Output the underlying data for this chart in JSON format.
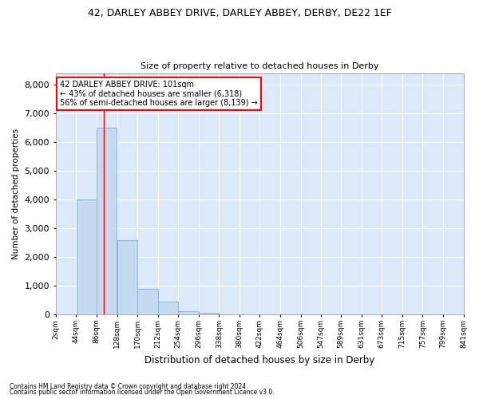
{
  "title1": "42, DARLEY ABBEY DRIVE, DARLEY ABBEY, DERBY, DE22 1EF",
  "title2": "Size of property relative to detached houses in Derby",
  "xlabel": "Distribution of detached houses by size in Derby",
  "ylabel": "Number of detached properties",
  "bar_color": "#c5d9f1",
  "bar_edge_color": "#8ab4d8",
  "background_color": "#dce9f8",
  "grid_color": "#ffffff",
  "property_size": 101,
  "annotation_line1": "42 DARLEY ABBEY DRIVE: 101sqm",
  "annotation_line2": "← 43% of detached houses are smaller (6,318)",
  "annotation_line3": "56% of semi-detached houses are larger (8,139) →",
  "footer1": "Contains HM Land Registry data © Crown copyright and database right 2024.",
  "footer2": "Contains public sector information licensed under the Open Government Licence v3.0.",
  "bin_labels": [
    "2sqm",
    "44sqm",
    "86sqm",
    "128sqm",
    "170sqm",
    "212sqm",
    "254sqm",
    "296sqm",
    "338sqm",
    "380sqm",
    "422sqm",
    "464sqm",
    "506sqm",
    "547sqm",
    "589sqm",
    "631sqm",
    "673sqm",
    "715sqm",
    "757sqm",
    "799sqm",
    "841sqm"
  ],
  "bin_edges": [
    2,
    44,
    86,
    128,
    170,
    212,
    254,
    296,
    338,
    380,
    422,
    464,
    506,
    547,
    589,
    631,
    673,
    715,
    757,
    799,
    841
  ],
  "bin_values": [
    0,
    4000,
    6500,
    2600,
    900,
    450,
    130,
    50,
    20,
    5,
    2,
    1,
    0,
    0,
    0,
    0,
    0,
    0,
    0,
    0
  ],
  "ylim": [
    0,
    8400
  ],
  "yticks": [
    0,
    1000,
    2000,
    3000,
    4000,
    5000,
    6000,
    7000,
    8000
  ]
}
